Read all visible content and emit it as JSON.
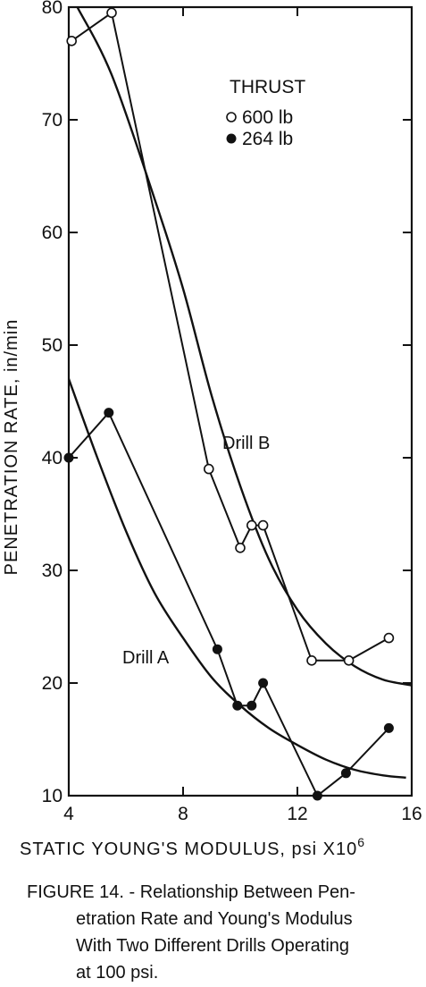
{
  "chart_data": {
    "type": "line",
    "xlabel": "STATIC YOUNG'S MODULUS, psi X10",
    "xlabel_exponent": "6",
    "ylabel": "PENETRATION RATE, in/min",
    "xlim": [
      4,
      16
    ],
    "ylim": [
      10,
      80
    ],
    "xticks": [
      4,
      8,
      12,
      16
    ],
    "yticks": [
      10,
      20,
      30,
      40,
      50,
      60,
      70,
      80
    ],
    "grid": false,
    "legend": {
      "title": "THRUST",
      "placement": "top-right",
      "entries": [
        {
          "label": "600 lb",
          "marker": "open-circle"
        },
        {
          "label": "264 lb",
          "marker": "filled-circle"
        }
      ]
    },
    "annotations": [
      {
        "text": "Drill B",
        "x": 9.5,
        "y": 39.5
      },
      {
        "text": "Drill A",
        "x": 6.5,
        "y": 20.5
      }
    ],
    "series": [
      {
        "thrust": "600 lb",
        "marker": "open",
        "points": [
          [
            4.1,
            77
          ],
          [
            5.5,
            79.5
          ],
          [
            8.9,
            39
          ],
          [
            10.0,
            32
          ],
          [
            10.4,
            34
          ],
          [
            10.8,
            34
          ],
          [
            12.5,
            22
          ],
          [
            13.8,
            22
          ],
          [
            15.2,
            24
          ]
        ]
      },
      {
        "thrust": "264 lb",
        "marker": "filled",
        "points": [
          [
            4.0,
            40
          ],
          [
            5.4,
            44
          ],
          [
            9.2,
            23
          ],
          [
            9.9,
            18
          ],
          [
            10.4,
            18
          ],
          [
            10.8,
            20
          ],
          [
            12.7,
            10
          ],
          [
            13.7,
            12
          ],
          [
            15.2,
            16
          ]
        ]
      }
    ],
    "fit_curves": [
      {
        "label": "Drill B",
        "points": [
          [
            4.3,
            80
          ],
          [
            5.5,
            74
          ],
          [
            7,
            63
          ],
          [
            8,
            55
          ],
          [
            9,
            45.5
          ],
          [
            10,
            37.5
          ],
          [
            11,
            31
          ],
          [
            12,
            26.5
          ],
          [
            13,
            23.5
          ],
          [
            14,
            21.5
          ],
          [
            15,
            20.3
          ],
          [
            16,
            19.8
          ]
        ]
      },
      {
        "label": "Drill A",
        "points": [
          [
            4,
            47
          ],
          [
            5,
            40
          ],
          [
            6,
            33.5
          ],
          [
            7,
            28
          ],
          [
            8,
            24
          ],
          [
            9,
            20.5
          ],
          [
            10,
            18
          ],
          [
            11,
            16
          ],
          [
            12,
            14.5
          ],
          [
            13,
            13.2
          ],
          [
            14,
            12.3
          ],
          [
            15,
            11.8
          ],
          [
            15.8,
            11.6
          ]
        ]
      }
    ]
  },
  "caption": {
    "lines": [
      "FIGURE 14. - Relationship Between Pen-",
      "etration Rate and Young's Modulus",
      "With Two Different Drills Operating",
      "at 100 psi."
    ]
  }
}
